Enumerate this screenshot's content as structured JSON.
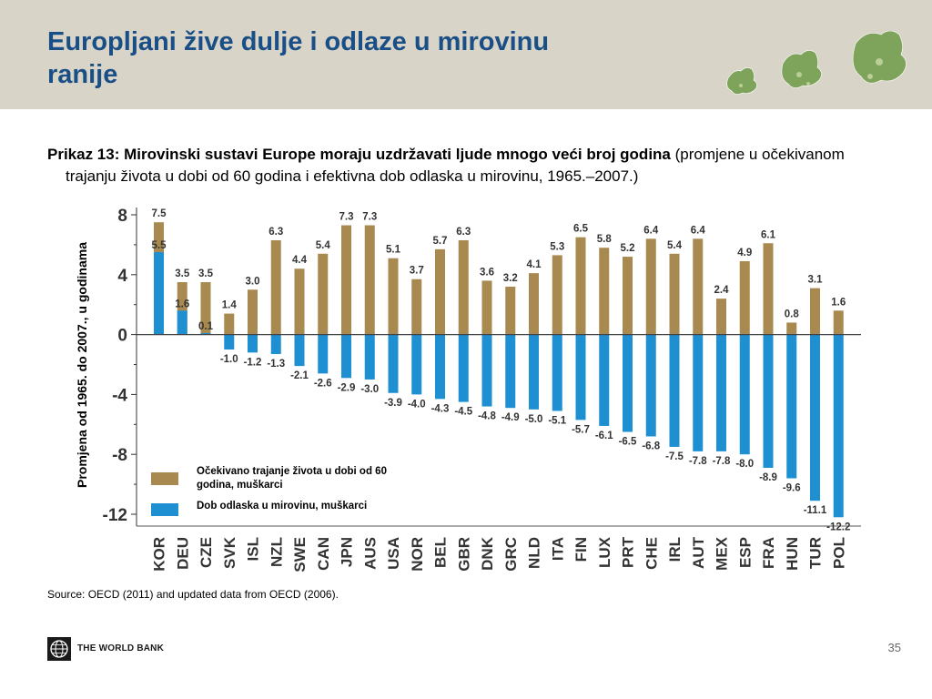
{
  "slide": {
    "title": "Europljani žive dulje i odlaze u mirovinu ranije",
    "caption_bold": "Prikaz 13: Mirovinski sustavi Europe moraju uzdržavati ljude mnogo veći broj godina",
    "caption_rest": " (promjene u očekivanom trajanju života u dobi od 60 godina i efektivna dob odlaska u mirovinu, 1965.–2007.)",
    "source": "Source: OECD (2011) and updated data from OECD (2006).",
    "logo_text": "THE WORLD BANK",
    "page_number": "35"
  },
  "colors": {
    "header_band": "#d8d5c8",
    "title": "#1a4e86",
    "life_expectancy": "#a8894f",
    "retirement_age": "#1e90d2"
  },
  "chart_data": {
    "type": "bar",
    "ylabel": "Promjena od 1965. do 2007., u godinama",
    "ylim": [
      -12,
      8
    ],
    "yticks": [
      8,
      4,
      0,
      -4,
      -8,
      -12
    ],
    "categories": [
      "KOR",
      "DEU",
      "CZE",
      "SVK",
      "ISL",
      "NZL",
      "SWE",
      "CAN",
      "JPN",
      "AUS",
      "USA",
      "NOR",
      "BEL",
      "GBR",
      "DNK",
      "GRC",
      "NLD",
      "ITA",
      "FIN",
      "LUX",
      "PRT",
      "CHE",
      "IRL",
      "AUT",
      "MEX",
      "ESP",
      "FRA",
      "HUN",
      "TUR",
      "POL"
    ],
    "series": [
      {
        "name": "Očekivano trajanje života u dobi od 60 godina, muškarci",
        "values": [
          7.5,
          3.5,
          3.5,
          1.4,
          3.0,
          6.3,
          4.4,
          5.4,
          7.3,
          7.3,
          5.1,
          3.7,
          5.7,
          6.3,
          3.6,
          3.2,
          4.1,
          5.3,
          6.5,
          5.8,
          5.2,
          6.4,
          5.4,
          6.4,
          2.4,
          4.9,
          6.1,
          0.8,
          3.1,
          1.6
        ]
      },
      {
        "name": "Dob odlaska u mirovinu, muškarci",
        "values": [
          5.5,
          1.6,
          0.1,
          -1.0,
          -1.2,
          -1.3,
          -2.1,
          -2.6,
          -2.9,
          -3.0,
          -3.9,
          -4.0,
          -4.3,
          -4.5,
          -4.8,
          -4.9,
          -5.0,
          -5.1,
          -5.7,
          -6.1,
          -6.5,
          -6.8,
          -7.5,
          -7.8,
          -7.8,
          -8.0,
          -8.9,
          -9.6,
          -11.1,
          -12.2
        ]
      }
    ],
    "legend": "bottom-left",
    "grid": false
  }
}
